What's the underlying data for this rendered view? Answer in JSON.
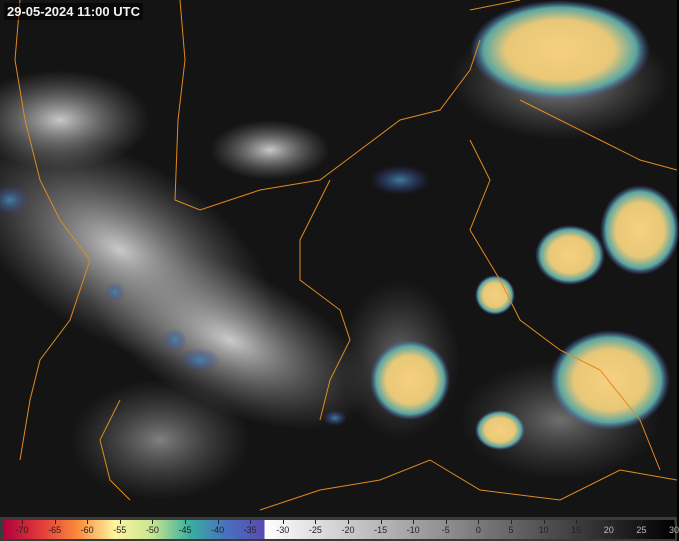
{
  "title": "29-05-2024 11:00 UTC",
  "colorbar": {
    "unit_context": "brightness temperature",
    "labels": [
      "-70",
      "-65",
      "-60",
      "-55",
      "-50",
      "-45",
      "-40",
      "-35",
      "-30",
      "-25",
      "-20",
      "-15",
      "-10",
      "-5",
      "0",
      "5",
      "10",
      "15",
      "20",
      "25",
      "30"
    ],
    "colored_stops": [
      "#b0003a",
      "#e23a3a",
      "#fb8a3c",
      "#fdf5a0",
      "#c7e58f",
      "#3aaea0",
      "#4a6fc0",
      "#5a4ab0"
    ],
    "gray_range": [
      "#ffffff",
      "#000000"
    ]
  },
  "colors": {
    "coastline": "#e08a20",
    "background": "#111111"
  }
}
